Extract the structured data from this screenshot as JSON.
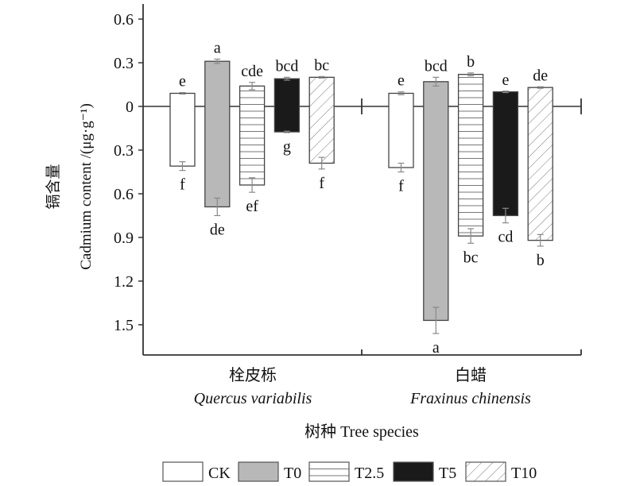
{
  "chart_data": {
    "type": "bar",
    "ylabel_cn": "镉含量",
    "ylabel": "Cadmium content /(μg·g⁻¹)",
    "xlabel": "树种 Tree species",
    "ylim_above": [
      0,
      0.7
    ],
    "ylim_below": [
      0,
      1.7
    ],
    "yticks_above": [
      "0.6",
      "0.3"
    ],
    "yticks_zero": "0",
    "yticks_below": [
      "0.3",
      "0.6",
      "0.9",
      "1.2",
      "1.5"
    ],
    "yticks_above_values": [
      0.6,
      0.3
    ],
    "yticks_below_values": [
      0.3,
      0.6,
      0.9,
      1.2,
      1.5
    ],
    "legend_position": "bottom",
    "series_names": [
      "CK",
      "T0",
      "T2.5",
      "T5",
      "T10"
    ],
    "series_styles": [
      "white",
      "gray",
      "hlines",
      "black",
      "diagonal"
    ],
    "colors": {
      "gray": "#b8b8b8",
      "black": "#1a1a1a",
      "error": "#888888",
      "axis": "#333333"
    },
    "groups": [
      {
        "name_cn": "栓皮栎",
        "name_latin": "Quercus variabilis",
        "bars": [
          {
            "series": "CK",
            "above": 0.09,
            "above_err": 0.005,
            "above_letter": "e",
            "below": 0.41,
            "below_err": 0.03,
            "below_letter": "f"
          },
          {
            "series": "T0",
            "above": 0.31,
            "above_err": 0.015,
            "above_letter": "a",
            "below": 0.69,
            "below_err": 0.06,
            "below_letter": "de"
          },
          {
            "series": "T2.5",
            "above": 0.14,
            "above_err": 0.025,
            "above_letter": "cde",
            "below": 0.54,
            "below_err": 0.05,
            "below_letter": "ef"
          },
          {
            "series": "T5",
            "above": 0.19,
            "above_err": 0.01,
            "above_letter": "bcd",
            "below": 0.175,
            "below_err": 0.005,
            "below_letter": "g"
          },
          {
            "series": "T10",
            "above": 0.2,
            "above_err": 0.005,
            "above_letter": "bc",
            "below": 0.39,
            "below_err": 0.04,
            "below_letter": "f"
          }
        ]
      },
      {
        "name_cn": "白蜡",
        "name_latin": "Fraxinus chinensis",
        "bars": [
          {
            "series": "CK",
            "above": 0.09,
            "above_err": 0.01,
            "above_letter": "e",
            "below": 0.42,
            "below_err": 0.03,
            "below_letter": "f"
          },
          {
            "series": "T0",
            "above": 0.17,
            "above_err": 0.03,
            "above_letter": "bcd",
            "below": 1.47,
            "below_err": 0.09,
            "below_letter": "a"
          },
          {
            "series": "T2.5",
            "above": 0.22,
            "above_err": 0.01,
            "above_letter": "b",
            "below": 0.89,
            "below_err": 0.05,
            "below_letter": "bc"
          },
          {
            "series": "T5",
            "above": 0.1,
            "above_err": 0.005,
            "above_letter": "e",
            "below": 0.75,
            "below_err": 0.05,
            "below_letter": "cd"
          },
          {
            "series": "T10",
            "above": 0.13,
            "above_err": 0.005,
            "above_letter": "de",
            "below": 0.92,
            "below_err": 0.04,
            "below_letter": "b"
          }
        ]
      }
    ]
  }
}
